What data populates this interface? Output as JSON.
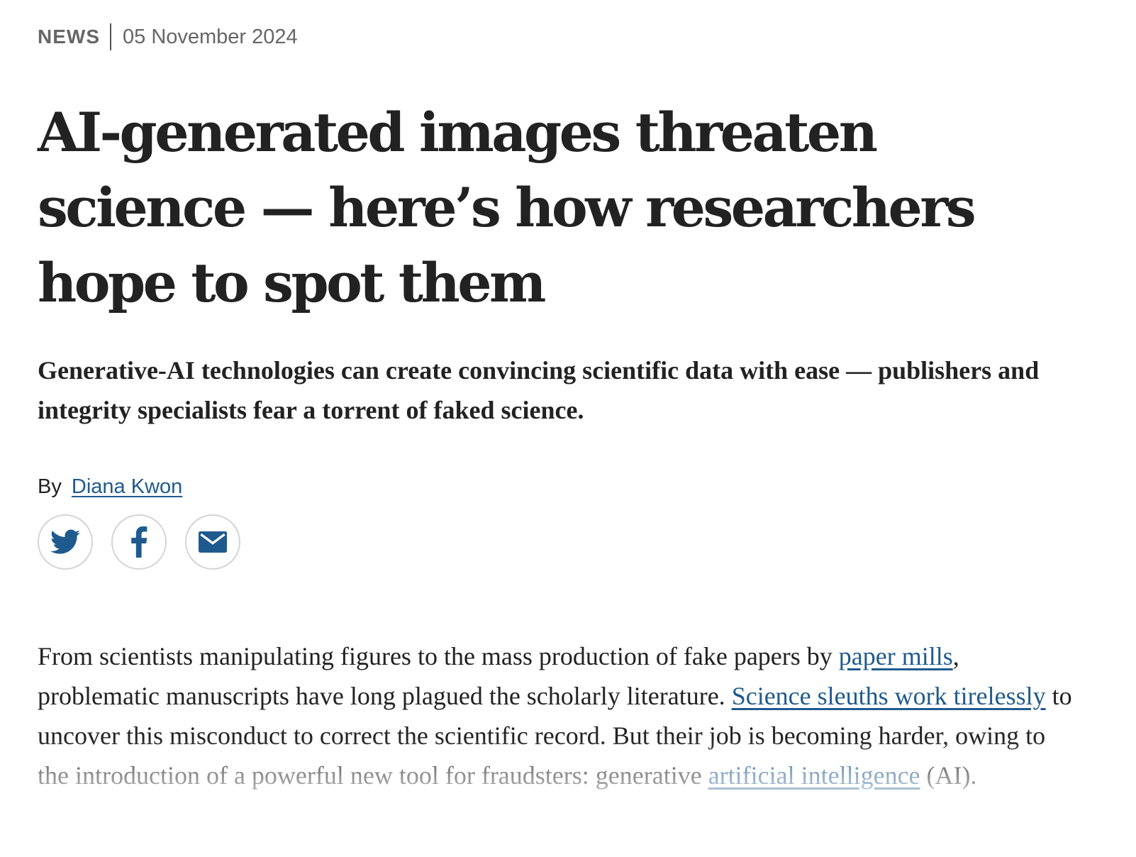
{
  "article": {
    "type": "NEWS",
    "date": "05 November 2024",
    "headline": "AI-generated images threaten science — here’s how researchers hope to spot them",
    "standfirst": "Generative-AI technologies can create convincing scientific data with ease — publishers and integrity specialists fear a torrent of faked science.",
    "byline_prefix": "By",
    "author": "Diana Kwon"
  },
  "share": {
    "twitter_icon": "twitter-icon",
    "facebook_icon": "facebook-icon",
    "email_icon": "email-icon",
    "icon_color": "#1f5a8e"
  },
  "body": {
    "p1_seg1": "From scientists manipulating figures to the mass production of fake papers by ",
    "p1_link1": "paper mills",
    "p1_seg2": ", problematic manuscripts have long plagued the scholarly literature. ",
    "p1_link2": "Science sleuths work tirelessly",
    "p1_seg3": " to uncover this misconduct to correct the scientific record. But their job is becoming harder, owing to the introduction of a powerful new tool for fraudsters: generative ",
    "p1_link3": "artificial intelligence",
    "p1_seg4": " (AI)."
  },
  "colors": {
    "text": "#222222",
    "meta": "#666666",
    "link": "#1f5a8e"
  }
}
